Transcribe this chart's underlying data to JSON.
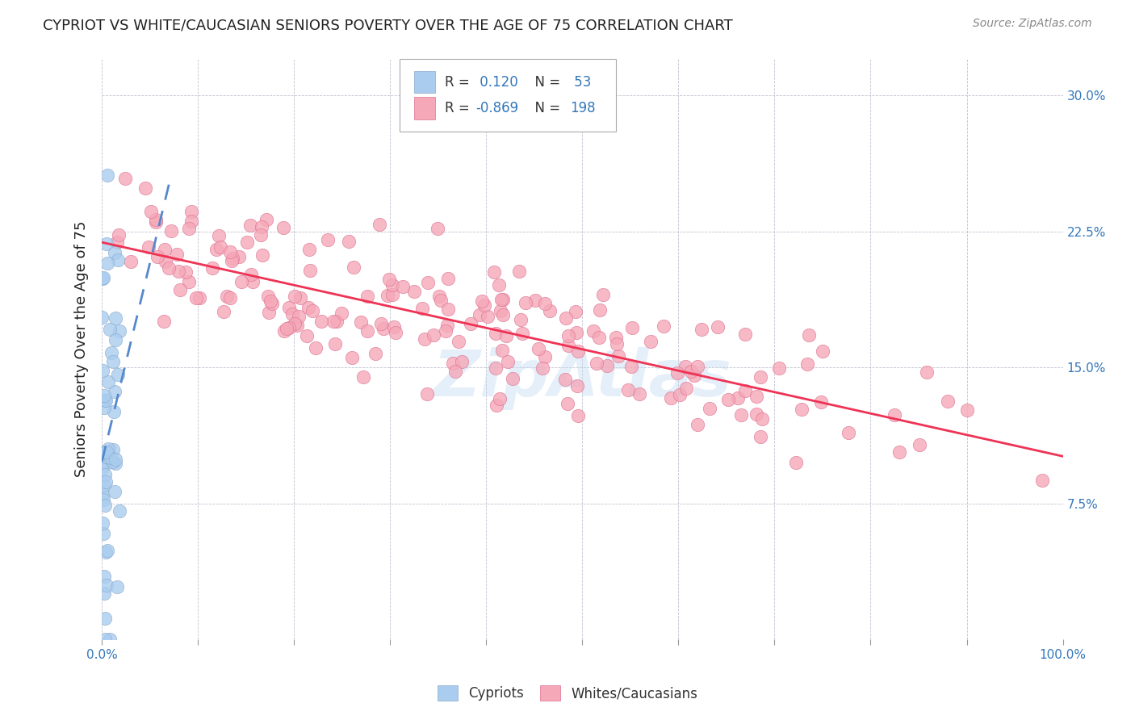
{
  "title": "CYPRIOT VS WHITE/CAUCASIAN SENIORS POVERTY OVER THE AGE OF 75 CORRELATION CHART",
  "source": "Source: ZipAtlas.com",
  "ylabel": "Seniors Poverty Over the Age of 75",
  "cypriot_R": 0.12,
  "cypriot_N": 53,
  "caucasian_R": -0.869,
  "caucasian_N": 198,
  "cypriot_color": "#aaccee",
  "cypriot_edge": "#88aacc",
  "caucasian_color": "#f5a8b8",
  "caucasian_edge": "#dd7090",
  "trend_cypriot_color": "#5588cc",
  "trend_caucasian_color": "#ee3355",
  "background": "#ffffff",
  "grid_color": "#bbbbcc",
  "title_color": "#222222",
  "axis_label_color": "#3377bb",
  "source_color": "#888888",
  "legend_R_color": "#3377bb",
  "xlim": [
    0.0,
    1.0
  ],
  "ylim": [
    0.0,
    0.32
  ],
  "yticks": [
    0.075,
    0.15,
    0.225,
    0.3
  ],
  "ytick_labels": [
    "7.5%",
    "15.0%",
    "22.5%",
    "30.0%"
  ],
  "xticks": [
    0.0,
    0.1,
    0.2,
    0.3,
    0.4,
    0.5,
    0.6,
    0.7,
    0.8,
    0.9,
    1.0
  ],
  "xtick_labels": [
    "0.0%",
    "",
    "",
    "",
    "",
    "",
    "",
    "",
    "",
    "",
    "100.0%"
  ],
  "watermark": "ZipAtlas"
}
